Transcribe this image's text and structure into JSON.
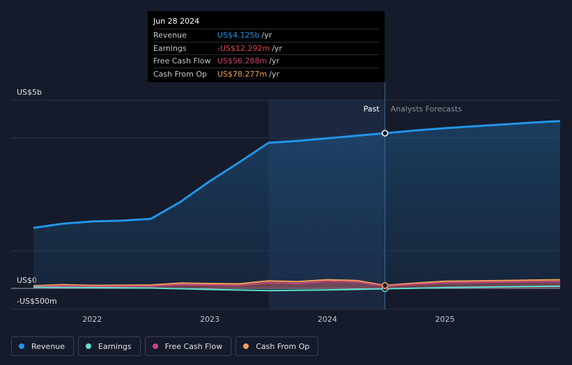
{
  "chart_data": {
    "type": "line",
    "title": "",
    "x_ticks": [
      2022,
      2023,
      2024,
      2025
    ],
    "y_ticks": [
      {
        "value": 5000,
        "label": "US$5b"
      },
      {
        "value": 0,
        "label": "US$0"
      },
      {
        "value": -500,
        "label": "-US$500m"
      }
    ],
    "xlim": [
      2021.5,
      2025.98
    ],
    "ylim": [
      -500,
      5000
    ],
    "past_end": 2024.49,
    "shade_start": 2023.5,
    "section_labels": {
      "past": "Past",
      "forecast": "Analysts Forecasts"
    },
    "series": [
      {
        "name": "Revenue",
        "color": "#2394e8",
        "fill": true,
        "points": [
          [
            2021.5,
            1610
          ],
          [
            2021.75,
            1720
          ],
          [
            2022,
            1780
          ],
          [
            2022.25,
            1800
          ],
          [
            2022.5,
            1850
          ],
          [
            2022.75,
            2300
          ],
          [
            2023,
            2850
          ],
          [
            2023.25,
            3350
          ],
          [
            2023.5,
            3870
          ],
          [
            2023.75,
            3920
          ],
          [
            2024,
            3990
          ],
          [
            2024.25,
            4060
          ],
          [
            2024.49,
            4125
          ]
        ],
        "forecast": [
          [
            2024.49,
            4125
          ],
          [
            2024.75,
            4200
          ],
          [
            2025,
            4260
          ],
          [
            2025.25,
            4310
          ],
          [
            2025.5,
            4360
          ],
          [
            2025.75,
            4410
          ],
          [
            2025.98,
            4450
          ]
        ]
      },
      {
        "name": "Earnings",
        "color": "#5fe0cd",
        "fill": false,
        "points": [
          [
            2021.5,
            30
          ],
          [
            2022,
            20
          ],
          [
            2022.5,
            10
          ],
          [
            2023,
            -30
          ],
          [
            2023.5,
            -60
          ],
          [
            2024,
            -40
          ],
          [
            2024.49,
            -12
          ]
        ],
        "forecast": [
          [
            2024.49,
            -12
          ],
          [
            2025,
            20
          ],
          [
            2025.5,
            40
          ],
          [
            2025.98,
            60
          ]
        ]
      },
      {
        "name": "Free Cash Flow",
        "color": "#c8447a",
        "fill": false,
        "points": [
          [
            2021.5,
            40
          ],
          [
            2021.75,
            70
          ],
          [
            2022,
            50
          ],
          [
            2022.5,
            60
          ],
          [
            2022.75,
            100
          ],
          [
            2023,
            90
          ],
          [
            2023.25,
            80
          ],
          [
            2023.5,
            150
          ],
          [
            2023.75,
            130
          ],
          [
            2024,
            190
          ],
          [
            2024.25,
            170
          ],
          [
            2024.49,
            56
          ]
        ],
        "forecast": [
          [
            2024.49,
            56
          ],
          [
            2024.75,
            110
          ],
          [
            2025,
            150
          ],
          [
            2025.5,
            170
          ],
          [
            2025.98,
            180
          ]
        ]
      },
      {
        "name": "Cash From Op",
        "color": "#f0a15a",
        "fill": false,
        "points": [
          [
            2021.5,
            70
          ],
          [
            2021.75,
            100
          ],
          [
            2022,
            80
          ],
          [
            2022.5,
            90
          ],
          [
            2022.75,
            140
          ],
          [
            2023,
            130
          ],
          [
            2023.25,
            120
          ],
          [
            2023.5,
            200
          ],
          [
            2023.75,
            180
          ],
          [
            2024,
            230
          ],
          [
            2024.25,
            210
          ],
          [
            2024.49,
            78
          ]
        ],
        "forecast": [
          [
            2024.49,
            78
          ],
          [
            2024.75,
            140
          ],
          [
            2025,
            190
          ],
          [
            2025.5,
            210
          ],
          [
            2025.98,
            230
          ]
        ]
      }
    ]
  },
  "tooltip": {
    "date": "Jun 28 2024",
    "rows": [
      {
        "label": "Revenue",
        "value": "US$4.125b",
        "unit": "/yr",
        "color": "#2394e8"
      },
      {
        "label": "Earnings",
        "value": "-US$12.292m",
        "unit": "/yr",
        "color": "#e2474b"
      },
      {
        "label": "Free Cash Flow",
        "value": "US$56.288m",
        "unit": "/yr",
        "color": "#c8447a"
      },
      {
        "label": "Cash From Op",
        "value": "US$78.277m",
        "unit": "/yr",
        "color": "#f0a15a"
      }
    ]
  },
  "legend": [
    {
      "label": "Revenue",
      "color": "#2394e8"
    },
    {
      "label": "Earnings",
      "color": "#5fe0cd"
    },
    {
      "label": "Free Cash Flow",
      "color": "#c8447a"
    },
    {
      "label": "Cash From Op",
      "color": "#f0a15a"
    }
  ]
}
